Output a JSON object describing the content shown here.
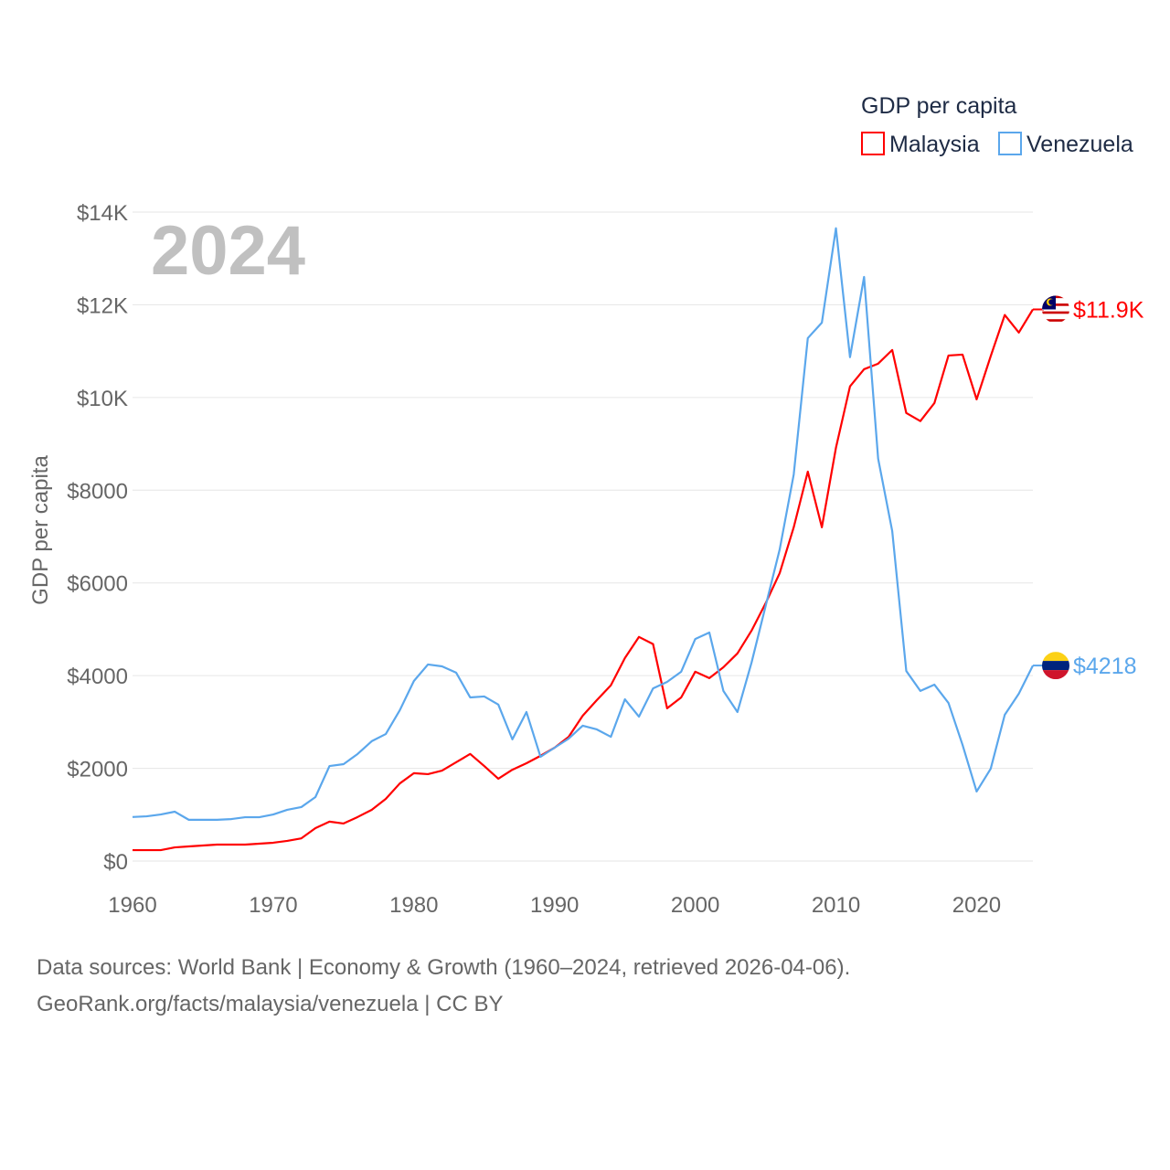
{
  "chart_data": {
    "type": "line",
    "year_label": "2024",
    "ylabel": "GDP per capita",
    "legend_title": "GDP per capita",
    "legend_position": "top-right",
    "xlim": [
      1960,
      2024
    ],
    "ylim": [
      0,
      14000
    ],
    "x_ticks": [
      1960,
      1970,
      1980,
      1990,
      2000,
      2010,
      2020
    ],
    "x_tick_labels": [
      "1960",
      "1970",
      "1980",
      "1990",
      "2000",
      "2010",
      "2020"
    ],
    "y_ticks": [
      0,
      2000,
      4000,
      6000,
      8000,
      10000,
      12000,
      14000
    ],
    "y_tick_labels": [
      "$0",
      "$2000",
      "$4000",
      "$6000",
      "$8000",
      "$10K",
      "$12K",
      "$14K"
    ],
    "grid": true,
    "series": [
      {
        "name": "Malaysia",
        "color": "#ff0000",
        "end_label": "$11.9K",
        "flag": "malaysia-flag",
        "values": [
          235,
          235,
          235,
          295,
          315,
          335,
          355,
          355,
          355,
          375,
          395,
          435,
          490,
          710,
          850,
          810,
          950,
          1105,
          1340,
          1675,
          1895,
          1875,
          1950,
          2130,
          2310,
          2050,
          1775,
          1970,
          2110,
          2270,
          2445,
          2680,
          3135,
          3470,
          3790,
          4380,
          4835,
          4680,
          3295,
          3530,
          4085,
          3945,
          4180,
          4480,
          4970,
          5560,
          6210,
          7200,
          8400,
          7200,
          8915,
          10240,
          10610,
          10730,
          11025,
          9665,
          9490,
          9880,
          10905,
          10925,
          9960,
          10890,
          11780,
          11400,
          11900
        ]
      },
      {
        "name": "Venezuela",
        "color": "#5ba7ec",
        "end_label": "$4218",
        "flag": "venezuela-flag",
        "values": [
          950,
          965,
          1005,
          1065,
          890,
          890,
          890,
          905,
          945,
          945,
          1005,
          1105,
          1165,
          1380,
          2050,
          2090,
          2310,
          2585,
          2740,
          3255,
          3885,
          4240,
          4200,
          4065,
          3530,
          3550,
          3375,
          2625,
          3215,
          2250,
          2445,
          2640,
          2920,
          2840,
          2680,
          3490,
          3115,
          3725,
          3865,
          4085,
          4790,
          4930,
          3670,
          3215,
          4280,
          5500,
          6720,
          8340,
          11280,
          11615,
          13650,
          10870,
          12600,
          8680,
          7120,
          4100,
          3670,
          3805,
          3410,
          2505,
          1500,
          1990,
          3155,
          3610,
          4218
        ]
      }
    ]
  },
  "footer": {
    "line1": "Data sources: World Bank | Economy & Growth (1960–2024, retrieved 2026-04-06).",
    "line2": "GeoRank.org/facts/malaysia/venezuela | CC BY"
  }
}
